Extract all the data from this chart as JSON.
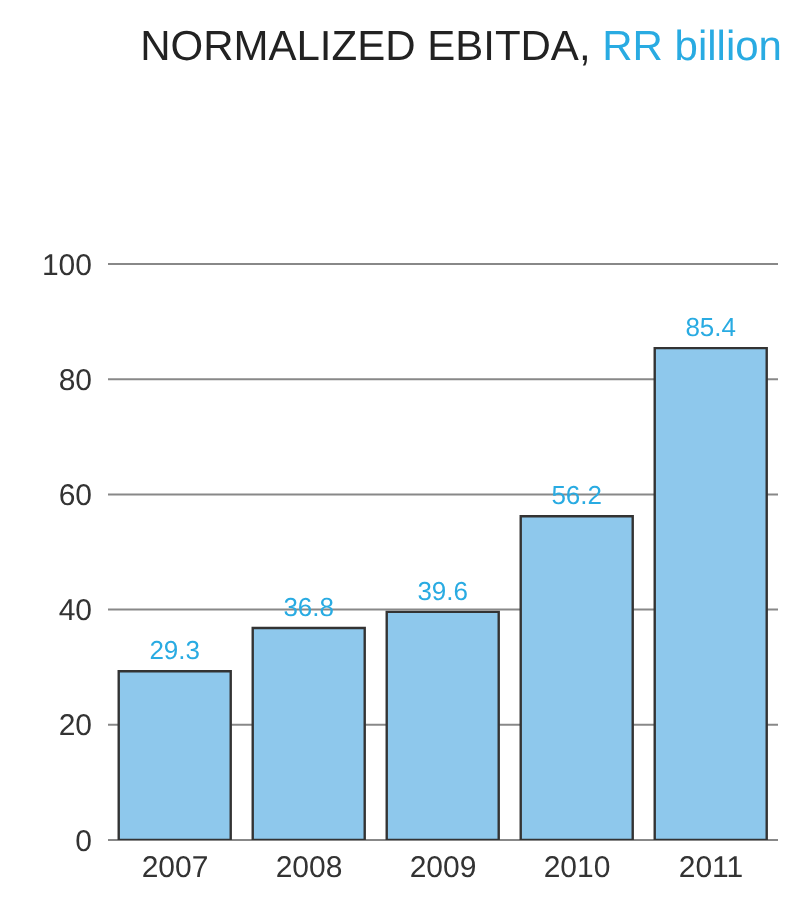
{
  "chart_data": {
    "type": "bar",
    "title": "NORMALIZED EBITDA,",
    "subtitle": "RR billion",
    "categories": [
      "2007",
      "2008",
      "2009",
      "2010",
      "2011"
    ],
    "values": [
      29.3,
      36.8,
      39.6,
      56.2,
      85.4
    ],
    "color": "#8ec8ec",
    "ylim": [
      0,
      100
    ],
    "yticks": [
      0,
      20,
      40,
      60,
      80,
      100
    ],
    "grid": "y",
    "data_labels": true
  }
}
